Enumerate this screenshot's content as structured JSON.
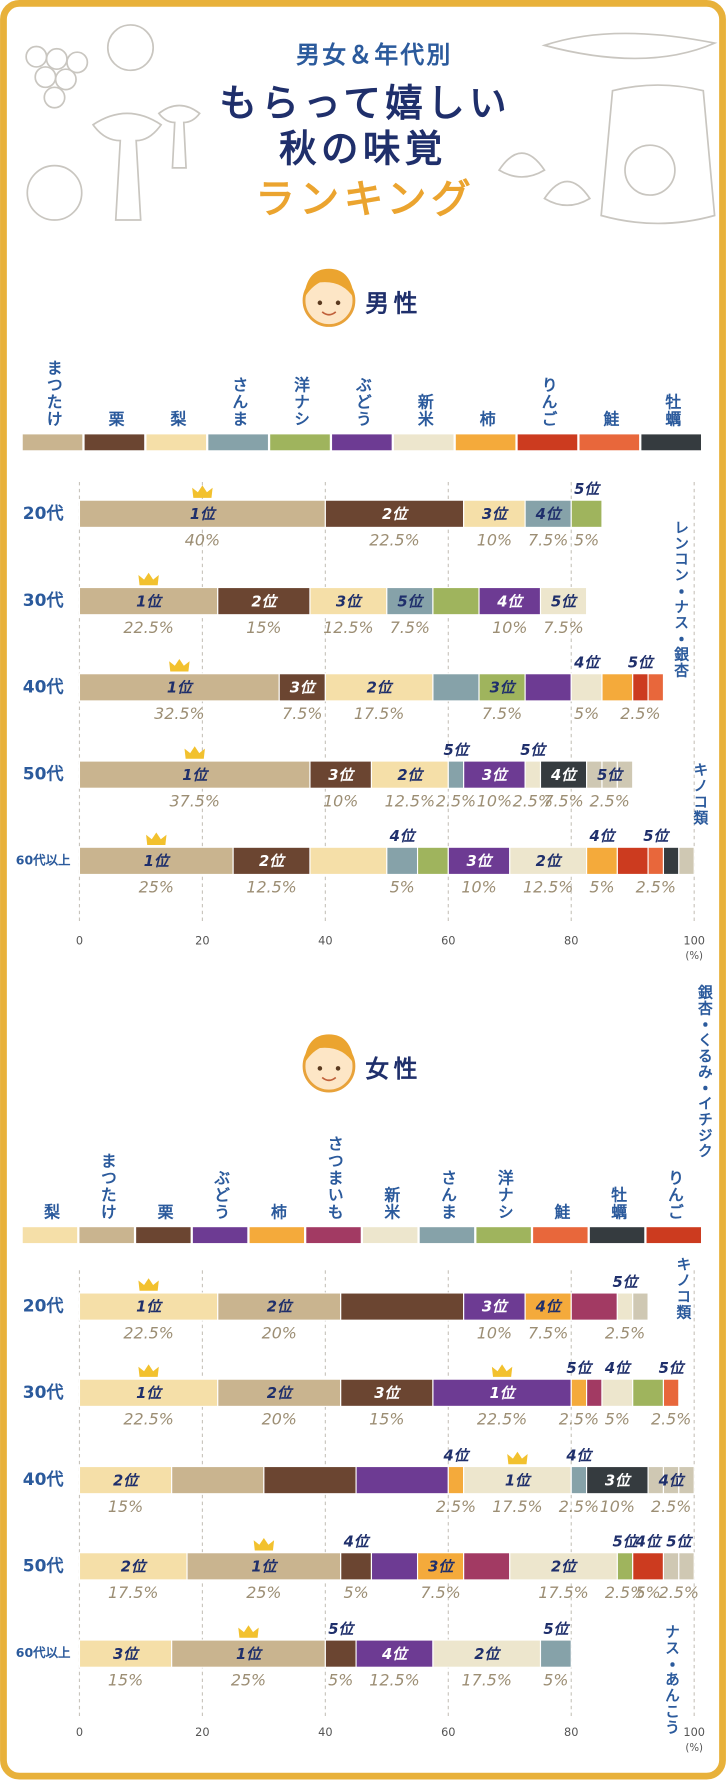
{
  "header": {
    "lines": [
      "男女＆年代別",
      "もらって嬉しい",
      "秋の味覚",
      "ランキング"
    ]
  },
  "chart_data": [
    {
      "type": "stacked_bar_h",
      "title": "男性",
      "categories": [
        "20代",
        "30代",
        "40代",
        "50代",
        "60代以上"
      ],
      "xlim": [
        0,
        100
      ],
      "xticks": [
        0,
        20,
        40,
        60,
        80,
        100
      ],
      "xlabel": "(%)",
      "grid": true,
      "series": [
        {
          "name": "まつたけ",
          "color": "#c9b48f",
          "values": [
            40,
            22.5,
            32.5,
            37.5,
            25
          ],
          "ranks": [
            "1位",
            "1位",
            "1位",
            "1位",
            "1位"
          ],
          "value_labels": [
            "40%",
            "22.5%",
            "32.5%",
            "37.5%",
            "25%"
          ]
        },
        {
          "name": "栗",
          "color": "#6b4531",
          "values": [
            22.5,
            15,
            7.5,
            10,
            12.5
          ],
          "ranks": [
            "2位",
            "2位",
            "3位",
            "3位",
            "2位"
          ],
          "value_labels": [
            "22.5%",
            "15%",
            "7.5%",
            "10%",
            "12.5%"
          ]
        },
        {
          "name": "梨",
          "color": "#f5dfa8",
          "values": [
            10,
            12.5,
            17.5,
            12.5,
            12.5
          ],
          "ranks": [
            "3位",
            "3位",
            "2位",
            "2位",
            null
          ],
          "value_labels": [
            "10%",
            "12.5%",
            "17.5%",
            "12.5%",
            null
          ]
        },
        {
          "name": "さんま",
          "color": "#86a2a9",
          "values": [
            7.5,
            7.5,
            7.5,
            2.5,
            5
          ],
          "ranks": [
            "4位",
            "5位",
            null,
            "5位",
            "4位"
          ],
          "value_labels": [
            "7.5%",
            "7.5%",
            null,
            "2.5%",
            "5%"
          ]
        },
        {
          "name": "洋ナシ",
          "color": "#9fb45d",
          "values": [
            5,
            7.5,
            7.5,
            null,
            5
          ],
          "ranks": [
            "5位",
            null,
            "3位",
            null,
            null
          ],
          "value_labels": [
            "5%",
            null,
            "7.5%",
            null,
            null
          ]
        },
        {
          "name": "ぶどう",
          "color": "#6d3b93",
          "values": [
            null,
            10,
            7.5,
            10,
            10
          ],
          "ranks": [
            null,
            "4位",
            null,
            "3位",
            "3位"
          ],
          "value_labels": [
            null,
            "10%",
            null,
            "10%",
            "10%"
          ]
        },
        {
          "name": "新米",
          "color": "#ede6cd",
          "values": [
            null,
            7.5,
            5,
            2.5,
            12.5
          ],
          "ranks": [
            null,
            "5位",
            "4位",
            "5位",
            "2位"
          ],
          "value_labels": [
            null,
            "7.5%",
            "5%",
            "2.5%",
            "12.5%"
          ]
        },
        {
          "name": "柿",
          "color": "#f4aa3b",
          "values": [
            null,
            null,
            5,
            null,
            5
          ],
          "ranks": [
            null,
            null,
            null,
            null,
            "4位"
          ],
          "value_labels": [
            null,
            null,
            null,
            null,
            "5%"
          ]
        },
        {
          "name": "りんご",
          "color": "#cc3b1f",
          "values": [
            null,
            null,
            2.5,
            null,
            5
          ],
          "ranks": [
            null,
            null,
            "5位",
            null,
            null
          ],
          "value_labels": [
            null,
            null,
            "2.5%",
            null,
            null
          ]
        },
        {
          "name": "鮭",
          "color": "#e8673b",
          "values": [
            null,
            null,
            2.5,
            null,
            2.5
          ],
          "ranks": [
            null,
            null,
            null,
            null,
            "5位"
          ],
          "value_labels": [
            null,
            null,
            null,
            null,
            "2.5%"
          ]
        },
        {
          "name": "牡蠣",
          "color": "#353b3f",
          "values": [
            null,
            null,
            null,
            7.5,
            2.5
          ],
          "ranks": [
            null,
            null,
            null,
            "4位",
            null
          ],
          "value_labels": [
            null,
            null,
            null,
            "7.5%",
            null
          ]
        },
        {
          "name": "レンコン・ナス・銀杏",
          "color": "#cfc8b3",
          "legend": false,
          "values": [
            null,
            null,
            null,
            [
              2.5,
              2.5,
              2.5
            ],
            null
          ],
          "ranks": [
            null,
            null,
            null,
            "5位",
            null
          ],
          "value_labels": [
            null,
            null,
            null,
            "2.5%",
            null
          ]
        },
        {
          "name": "キノコ類",
          "color": "#cfc8b3",
          "legend": false,
          "values": [
            null,
            null,
            null,
            null,
            2.5
          ],
          "ranks": [
            null,
            null,
            null,
            null,
            null
          ],
          "value_labels": [
            null,
            null,
            null,
            null,
            null
          ]
        }
      ]
    },
    {
      "type": "stacked_bar_h",
      "title": "女性",
      "categories": [
        "20代",
        "30代",
        "40代",
        "50代",
        "60代以上"
      ],
      "xlim": [
        0,
        100
      ],
      "xticks": [
        0,
        20,
        40,
        60,
        80,
        100
      ],
      "xlabel": "(%)",
      "grid": true,
      "series": [
        {
          "name": "梨",
          "color": "#f5dfa8",
          "values": [
            22.5,
            22.5,
            15,
            17.5,
            15
          ],
          "ranks": [
            "1位",
            "1位",
            "2位",
            "2位",
            "3位"
          ],
          "value_labels": [
            "22.5%",
            "22.5%",
            "15%",
            "17.5%",
            "15%"
          ]
        },
        {
          "name": "まつたけ",
          "color": "#c9b48f",
          "values": [
            20,
            20,
            15,
            25,
            25
          ],
          "ranks": [
            "2位",
            "2位",
            null,
            "1位",
            "1位"
          ],
          "value_labels": [
            "20%",
            "20%",
            null,
            "25%",
            "25%"
          ]
        },
        {
          "name": "栗",
          "color": "#6b4531",
          "values": [
            20,
            15,
            15,
            5,
            5
          ],
          "ranks": [
            null,
            "3位",
            null,
            "4位",
            "5位"
          ],
          "value_labels": [
            null,
            "15%",
            null,
            "5%",
            "5%"
          ]
        },
        {
          "name": "ぶどう",
          "color": "#6d3b93",
          "values": [
            10,
            22.5,
            15,
            7.5,
            12.5
          ],
          "ranks": [
            "3位",
            "1位",
            null,
            null,
            "4位"
          ],
          "value_labels": [
            "10%",
            "22.5%",
            null,
            null,
            "12.5%"
          ]
        },
        {
          "name": "柿",
          "color": "#f4aa3b",
          "values": [
            7.5,
            2.5,
            2.5,
            7.5,
            null
          ],
          "ranks": [
            "4位",
            "5位",
            "4位",
            "3位",
            null
          ],
          "value_labels": [
            "7.5%",
            "2.5%",
            "2.5%",
            "7.5%",
            null
          ]
        },
        {
          "name": "さつまいも",
          "color": "#a23a63",
          "values": [
            7.5,
            2.5,
            null,
            7.5,
            null
          ],
          "ranks": [
            null,
            null,
            null,
            null,
            null
          ],
          "value_labels": [
            null,
            null,
            null,
            null,
            null
          ]
        },
        {
          "name": "新米",
          "color": "#ede6cd",
          "values": [
            2.5,
            5,
            17.5,
            17.5,
            17.5
          ],
          "ranks": [
            "5位",
            "4位",
            "1位",
            "2位",
            "2位"
          ],
          "value_labels": [
            "2.5%",
            "5%",
            "17.5%",
            "17.5%",
            "17.5%"
          ]
        },
        {
          "name": "さんま",
          "color": "#86a2a9",
          "values": [
            null,
            null,
            2.5,
            null,
            5
          ],
          "ranks": [
            null,
            null,
            "4位",
            null,
            "5位"
          ],
          "value_labels": [
            null,
            null,
            "2.5%",
            null,
            "5%"
          ]
        },
        {
          "name": "洋ナシ",
          "color": "#9fb45d",
          "values": [
            null,
            5,
            null,
            2.5,
            null
          ],
          "ranks": [
            null,
            null,
            null,
            "5位",
            null
          ],
          "value_labels": [
            null,
            null,
            null,
            "2.5%",
            null
          ]
        },
        {
          "name": "鮭",
          "color": "#e8673b",
          "values": [
            null,
            2.5,
            null,
            null,
            null
          ],
          "ranks": [
            null,
            "5位",
            null,
            null,
            null
          ],
          "value_labels": [
            null,
            "2.5%",
            null,
            null,
            null
          ]
        },
        {
          "name": "牡蠣",
          "color": "#353b3f",
          "values": [
            null,
            null,
            10,
            null,
            null
          ],
          "ranks": [
            null,
            null,
            "3位",
            null,
            null
          ],
          "value_labels": [
            null,
            null,
            "10%",
            null,
            null
          ]
        },
        {
          "name": "りんご",
          "color": "#cc3b1f",
          "values": [
            null,
            null,
            null,
            5,
            null
          ],
          "ranks": [
            null,
            null,
            null,
            "4位",
            null
          ],
          "value_labels": [
            null,
            null,
            null,
            "5%",
            null
          ]
        },
        {
          "name": "銀杏・くるみ・イチジク",
          "color": "#cfc8b3",
          "legend": false,
          "values": [
            null,
            null,
            [
              2.5,
              2.5,
              2.5
            ],
            null,
            null
          ],
          "ranks": [
            null,
            null,
            "4位",
            null,
            null
          ],
          "value_labels": [
            null,
            null,
            "2.5%",
            null,
            null
          ]
        },
        {
          "name": "キノコ類",
          "color": "#cfc8b3",
          "legend": false,
          "values": [
            2.5,
            null,
            null,
            null,
            null
          ],
          "ranks": [
            null,
            null,
            null,
            null,
            null
          ],
          "value_labels": [
            null,
            null,
            null,
            null,
            null
          ]
        },
        {
          "name": "ナス・あんこう",
          "color": "#cfc8b3",
          "legend": false,
          "values": [
            null,
            null,
            null,
            [
              2.5,
              2.5
            ],
            null
          ],
          "ranks": [
            null,
            null,
            null,
            "5位",
            null
          ],
          "value_labels": [
            null,
            null,
            null,
            "2.5%",
            null
          ]
        }
      ]
    }
  ]
}
